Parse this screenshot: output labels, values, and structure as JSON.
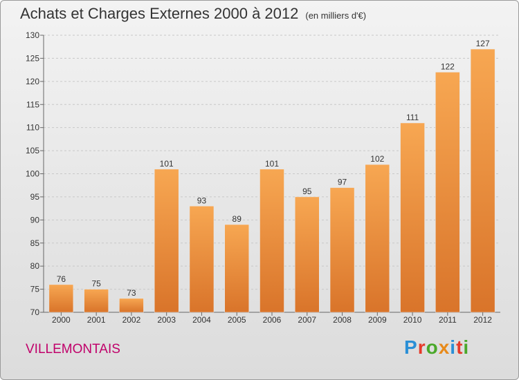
{
  "header": {
    "title": "Achats et Charges Externes 2000 à 2012",
    "subtitle": "(en milliers d'€)"
  },
  "footer": {
    "commune": "VILLEMONTAIS",
    "logo": "Proxiti"
  },
  "colors": {
    "bar_light": "#f7a752",
    "bar_dark": "#d9742a",
    "commune": "#c0006a",
    "logo_letters": [
      "#2a8fd6",
      "#e63a2a",
      "#4aa82a",
      "#e88a1a",
      "#2a8fd6",
      "#e63a2a",
      "#4aa82a"
    ]
  },
  "chart_data": {
    "type": "bar",
    "title": "Achats et Charges Externes 2000 à 2012",
    "subtitle": "(en milliers d'€)",
    "categories": [
      "2000",
      "2001",
      "2002",
      "2003",
      "2004",
      "2005",
      "2006",
      "2007",
      "2008",
      "2009",
      "2010",
      "2011",
      "2012"
    ],
    "values": [
      76,
      75,
      73,
      101,
      93,
      89,
      101,
      95,
      97,
      102,
      111,
      122,
      127
    ],
    "ylim": [
      70,
      130
    ],
    "yticks": [
      70,
      75,
      80,
      85,
      90,
      95,
      100,
      105,
      110,
      115,
      120,
      125,
      130
    ],
    "grid": "horizontal dashed",
    "data_labels": true
  }
}
